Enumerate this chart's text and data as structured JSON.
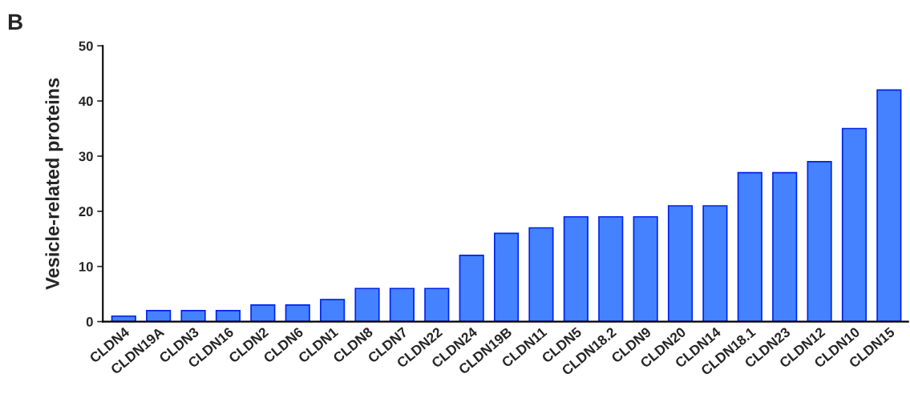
{
  "chart_data": {
    "type": "bar",
    "ylabel": "Vesicle-related proteins",
    "annotations": [
      "B"
    ],
    "categories": [
      "CLDN4",
      "CLDN19A",
      "CLDN3",
      "CLDN16",
      "CLDN2",
      "CLDN6",
      "CLDN1",
      "CLDN8",
      "CLDN7",
      "CLDN22",
      "CLDN24",
      "CLDN19B",
      "CLDN11",
      "CLDN5",
      "CLDN18.2",
      "CLDN9",
      "CLDN20",
      "CLDN14",
      "CLDN18.1",
      "CLDN23",
      "CLDN12",
      "CLDN10",
      "CLDN15"
    ],
    "values": [
      1,
      2,
      2,
      2,
      3,
      3,
      4,
      6,
      6,
      6,
      12,
      16,
      17,
      19,
      19,
      19,
      21,
      21,
      27,
      27,
      29,
      35,
      42
    ],
    "color": "#4582ff",
    "ylim": [
      0,
      50
    ],
    "yticks": [
      0,
      10,
      20,
      30,
      40,
      50
    ],
    "grid": false
  }
}
